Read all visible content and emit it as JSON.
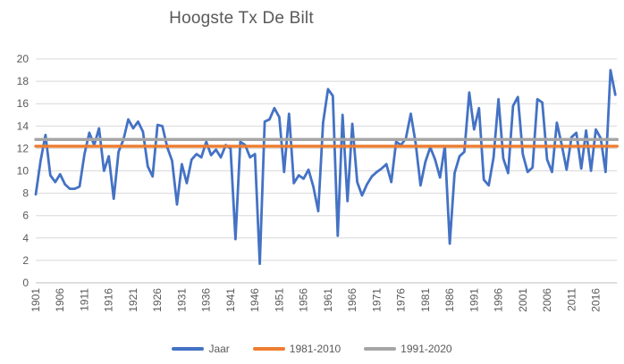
{
  "title": "Hoogste Tx De Bilt",
  "colors": {
    "series_blue": "#4472C4",
    "ref_orange": "#ED7D31",
    "ref_gray": "#A5A5A5",
    "gridline": "#D9D9D9",
    "axis_line": "#BFBFBF",
    "text": "#595959",
    "background": "#FFFFFF"
  },
  "chart_data": {
    "type": "line",
    "title": "Hoogste Tx De Bilt",
    "xlabel": "",
    "ylabel": "",
    "x_start": 1901,
    "x_end": 2020,
    "x_tick_interval": 5,
    "x_tick_first": 1901,
    "x_tick_last": 2016,
    "ylim": [
      0,
      20
    ],
    "y_tick_interval": 2,
    "grid": true,
    "legend_position": "bottom",
    "series": [
      {
        "name": "Jaar",
        "kind": "line",
        "color": "#4472C4",
        "values": [
          7.9,
          10.9,
          13.2,
          9.6,
          9.0,
          9.7,
          8.8,
          8.4,
          8.4,
          8.6,
          11.5,
          13.4,
          12.3,
          13.8,
          10.0,
          11.3,
          7.5,
          11.7,
          12.8,
          14.6,
          13.8,
          14.4,
          13.5,
          10.4,
          9.5,
          14.1,
          14.0,
          12.1,
          10.9,
          7.0,
          10.6,
          8.9,
          11.0,
          11.5,
          11.2,
          12.6,
          11.4,
          11.9,
          11.2,
          12.3,
          12.0,
          3.9,
          12.6,
          12.3,
          11.2,
          11.5,
          1.7,
          14.4,
          14.6,
          15.6,
          14.8,
          9.9,
          15.1,
          8.9,
          9.6,
          9.3,
          10.1,
          8.6,
          6.4,
          14.3,
          17.3,
          16.7,
          4.2,
          15.0,
          7.3,
          14.2,
          9.0,
          7.8,
          8.8,
          9.5,
          9.9,
          10.2,
          10.6,
          9.0,
          12.6,
          12.3,
          12.9,
          15.1,
          12.5,
          8.7,
          10.8,
          12.1,
          11.0,
          9.4,
          12.2,
          3.5,
          9.8,
          11.3,
          11.7,
          17.0,
          13.7,
          15.6,
          9.2,
          8.7,
          11.2,
          16.4,
          11.1,
          9.8,
          15.8,
          16.6,
          11.5,
          9.9,
          10.3,
          16.4,
          16.1,
          11.0,
          9.9,
          14.3,
          12.3,
          10.1,
          13.0,
          13.4,
          10.2,
          13.6,
          10.0,
          13.7,
          12.9,
          9.9,
          19.0,
          16.8
        ]
      },
      {
        "name": "1981-2010",
        "kind": "reference-line",
        "color": "#ED7D31",
        "value": 12.2
      },
      {
        "name": "1991-2020",
        "kind": "reference-line",
        "color": "#A5A5A5",
        "value": 12.8
      }
    ]
  },
  "legend": {
    "items": [
      {
        "label": "Jaar",
        "color": "#4472C4"
      },
      {
        "label": "1981-2010",
        "color": "#ED7D31"
      },
      {
        "label": "1991-2020",
        "color": "#A5A5A5"
      }
    ]
  }
}
